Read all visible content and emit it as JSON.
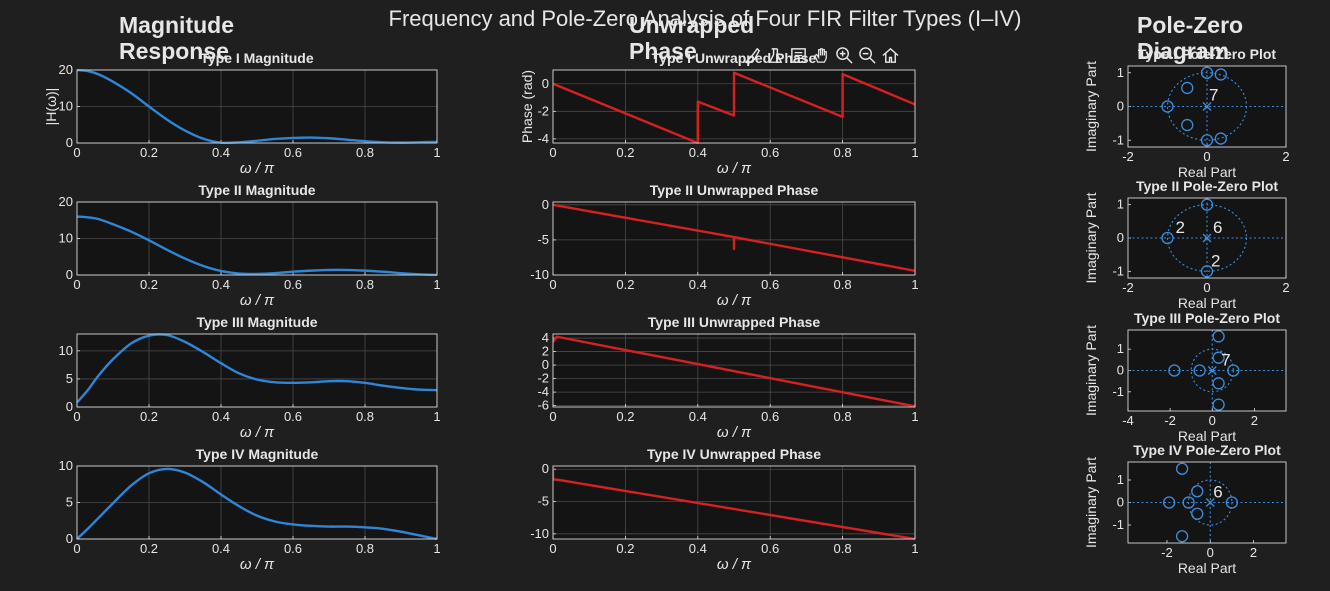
{
  "figure": {
    "title": "Frequency and Pole-Zero Analysis of Four FIR Filter Types (I–IV)",
    "column_titles": [
      {
        "line1": "Magnitude",
        "line2": "Response"
      },
      {
        "line1": "Unwrapped",
        "line2": "Phase"
      },
      {
        "line1": "Pole-Zero",
        "line2": "Diagram"
      }
    ],
    "colors": {
      "background": "#1f1f1f",
      "axes": "#141414",
      "grid": "#4a4a4a",
      "magnitude": "#2f86d8",
      "phase": "#d62022",
      "polezero": "#3a8ede"
    }
  },
  "toolbar": [
    "brush-icon",
    "data-tips-icon",
    "legend-icon",
    "pan-icon",
    "zoom-in-icon",
    "zoom-out-icon",
    "home-icon"
  ],
  "chart_data": [
    {
      "type": "line",
      "title": "Type I Magnitude",
      "xlabel": "ω / π",
      "ylabel": "|H(ω)|",
      "xlim": [
        0,
        1
      ],
      "ylim": [
        0,
        20
      ],
      "xticks": [
        0,
        0.2,
        0.4,
        0.6,
        0.8,
        1
      ],
      "yticks": [
        0,
        10,
        20
      ],
      "grid": true,
      "series": [
        {
          "x": [
            0,
            0.03,
            0.06,
            0.1,
            0.15,
            0.2,
            0.25,
            0.3,
            0.35,
            0.4,
            0.45,
            0.5,
            0.55,
            0.6,
            0.65,
            0.7,
            0.75,
            0.8,
            0.85,
            0.9,
            0.95,
            1
          ],
          "y": [
            20,
            19.7,
            18.8,
            16.8,
            13.7,
            10,
            6.4,
            3.4,
            1.2,
            0.1,
            0.2,
            0.6,
            1.1,
            1.4,
            1.5,
            1.3,
            0.9,
            0.5,
            0.2,
            0.1,
            0.2,
            0.3
          ]
        }
      ]
    },
    {
      "type": "line",
      "title": "Type I Unwrapped Phase",
      "xlabel": "ω / π",
      "ylabel": "Phase (rad)",
      "xlim": [
        0,
        1
      ],
      "ylim": [
        -4.3,
        1
      ],
      "xticks": [
        0,
        0.2,
        0.4,
        0.6,
        0.8,
        1
      ],
      "yticks": [
        0,
        -2,
        -4
      ],
      "grid": true,
      "series": [
        {
          "x": [
            0,
            0.4,
            0.4,
            0.5,
            0.5,
            0.8,
            0.8,
            1
          ],
          "y": [
            0,
            -4.3,
            -1.3,
            -2.3,
            0.8,
            -2.4,
            0.7,
            -1.5
          ]
        }
      ]
    },
    {
      "type": "scatter",
      "title": "Type I Pole-Zero Plot",
      "xlabel": "Real Part",
      "ylabel": "Imaginary Part",
      "xlim": [
        -2,
        2
      ],
      "ylim": [
        -1.2,
        1.2
      ],
      "xticks": [
        -2,
        0,
        2
      ],
      "yticks": [
        1,
        0,
        -1
      ],
      "grid": false,
      "zeros": [
        [
          -1,
          0
        ],
        [
          -0.5,
          0.55
        ],
        [
          -0.5,
          -0.55
        ],
        [
          0,
          1
        ],
        [
          0,
          -1
        ],
        [
          0.35,
          0.95
        ],
        [
          0.35,
          -0.95
        ]
      ],
      "poles": [
        [
          0,
          0
        ]
      ],
      "pole_multiplicity": 7,
      "annotations": [
        "7"
      ]
    },
    {
      "type": "line",
      "title": "Type II Magnitude",
      "xlabel": "ω / π",
      "ylabel": "",
      "xlim": [
        0,
        1
      ],
      "ylim": [
        0,
        20
      ],
      "xticks": [
        0,
        0.2,
        0.4,
        0.6,
        0.8,
        1
      ],
      "yticks": [
        0,
        10,
        20
      ],
      "grid": true,
      "series": [
        {
          "x": [
            0,
            0.03,
            0.06,
            0.1,
            0.15,
            0.2,
            0.25,
            0.3,
            0.35,
            0.4,
            0.45,
            0.5,
            0.55,
            0.6,
            0.65,
            0.7,
            0.75,
            0.8,
            0.85,
            0.9,
            0.95,
            1
          ],
          "y": [
            16,
            15.8,
            15.3,
            13.9,
            11.9,
            9.5,
            6.9,
            4.5,
            2.5,
            1.1,
            0.4,
            0.3,
            0.5,
            0.9,
            1.2,
            1.4,
            1.4,
            1.2,
            0.9,
            0.5,
            0.2,
            0
          ]
        }
      ]
    },
    {
      "type": "line",
      "title": "Type II Unwrapped Phase",
      "xlabel": "ω / π",
      "ylabel": "",
      "xlim": [
        0,
        1
      ],
      "ylim": [
        -10,
        0.4
      ],
      "xticks": [
        0,
        0.2,
        0.4,
        0.6,
        0.8,
        1
      ],
      "yticks": [
        0,
        -5,
        -10
      ],
      "grid": true,
      "series": [
        {
          "x": [
            0,
            0.5,
            0.5,
            0.5,
            1
          ],
          "y": [
            0,
            -4.6,
            -6.3,
            -4.6,
            -9.4
          ]
        }
      ]
    },
    {
      "type": "scatter",
      "title": "Type II Pole-Zero Plot",
      "xlabel": "Real Part",
      "ylabel": "Imaginary Part",
      "xlim": [
        -2,
        2
      ],
      "ylim": [
        -1.2,
        1.2
      ],
      "xticks": [
        -2,
        0,
        2
      ],
      "yticks": [
        1,
        0,
        -1
      ],
      "grid": false,
      "zeros": [
        [
          -1,
          0
        ],
        [
          0,
          1
        ],
        [
          0,
          -1
        ]
      ],
      "poles": [
        [
          0,
          0
        ]
      ],
      "pole_multiplicity": 6,
      "annotations": [
        "2",
        "6",
        "2"
      ]
    },
    {
      "type": "line",
      "title": "Type III Magnitude",
      "xlabel": "ω / π",
      "ylabel": "",
      "xlim": [
        0,
        1
      ],
      "ylim": [
        0,
        13
      ],
      "xticks": [
        0,
        0.2,
        0.4,
        0.6,
        0.8,
        1
      ],
      "yticks": [
        0,
        5,
        10
      ],
      "grid": true,
      "series": [
        {
          "x": [
            0,
            0.03,
            0.06,
            0.1,
            0.15,
            0.2,
            0.25,
            0.3,
            0.35,
            0.4,
            0.45,
            0.5,
            0.55,
            0.6,
            0.65,
            0.7,
            0.75,
            0.8,
            0.85,
            0.9,
            0.95,
            1
          ],
          "y": [
            0.8,
            3,
            5.6,
            8.5,
            11.3,
            12.7,
            12.8,
            11.6,
            9.8,
            7.8,
            6,
            4.9,
            4.4,
            4.3,
            4.4,
            4.6,
            4.6,
            4.3,
            3.8,
            3.4,
            3.1,
            3
          ]
        }
      ]
    },
    {
      "type": "line",
      "title": "Type III Unwrapped Phase",
      "xlabel": "ω / π",
      "ylabel": "",
      "xlim": [
        0,
        1
      ],
      "ylim": [
        -6.2,
        4.6
      ],
      "xticks": [
        0,
        0.2,
        0.4,
        0.6,
        0.8,
        1
      ],
      "yticks": [
        4,
        2,
        0,
        -2,
        -4,
        -6
      ],
      "grid": true,
      "series": [
        {
          "x": [
            0,
            0.01,
            0.02,
            1
          ],
          "y": [
            3.4,
            4.2,
            4.1,
            -6.1
          ]
        }
      ]
    },
    {
      "type": "scatter",
      "title": "Type III Pole-Zero Plot",
      "xlabel": "Real Part",
      "ylabel": "Imaginary Part",
      "xlim": [
        -4,
        3.5
      ],
      "ylim": [
        -1.9,
        1.9
      ],
      "xticks": [
        -4,
        -2,
        0,
        2
      ],
      "yticks": [
        1,
        0,
        -1
      ],
      "grid": false,
      "zeros": [
        [
          -1.8,
          0
        ],
        [
          -0.6,
          0
        ],
        [
          1,
          0
        ],
        [
          0.3,
          1.6
        ],
        [
          0.3,
          -1.6
        ],
        [
          0.3,
          0.6
        ],
        [
          0.3,
          -0.6
        ]
      ],
      "poles": [
        [
          0,
          0
        ]
      ],
      "pole_multiplicity": 7,
      "annotations": [
        "7"
      ]
    },
    {
      "type": "line",
      "title": "Type IV Magnitude",
      "xlabel": "ω / π",
      "ylabel": "",
      "xlim": [
        0,
        1
      ],
      "ylim": [
        0,
        10
      ],
      "xticks": [
        0,
        0.2,
        0.4,
        0.6,
        0.8,
        1
      ],
      "yticks": [
        0,
        5,
        10
      ],
      "grid": true,
      "series": [
        {
          "x": [
            0,
            0.03,
            0.06,
            0.1,
            0.15,
            0.2,
            0.25,
            0.3,
            0.35,
            0.4,
            0.45,
            0.5,
            0.55,
            0.6,
            0.65,
            0.7,
            0.75,
            0.8,
            0.85,
            0.9,
            0.95,
            1
          ],
          "y": [
            0,
            1.4,
            2.9,
            4.9,
            7.3,
            9,
            9.6,
            9.1,
            7.8,
            6.1,
            4.5,
            3.2,
            2.4,
            2,
            1.8,
            1.7,
            1.7,
            1.6,
            1.4,
            1,
            0.5,
            0
          ]
        }
      ]
    },
    {
      "type": "line",
      "title": "Type IV Unwrapped Phase",
      "xlabel": "ω / π",
      "ylabel": "",
      "xlim": [
        0,
        1
      ],
      "ylim": [
        -10.8,
        0.5
      ],
      "xticks": [
        0,
        0.2,
        0.4,
        0.6,
        0.8,
        1
      ],
      "yticks": [
        0,
        -5,
        -10
      ],
      "grid": true,
      "series": [
        {
          "x": [
            0,
            0,
            0.01,
            1
          ],
          "y": [
            0.2,
            -1.6,
            -1.6,
            -10.8
          ]
        }
      ]
    },
    {
      "type": "scatter",
      "title": "Type IV Pole-Zero Plot",
      "xlabel": "Real Part",
      "ylabel": "Imaginary Part",
      "xlim": [
        -3.8,
        3.5
      ],
      "ylim": [
        -1.8,
        1.8
      ],
      "xticks": [
        -2,
        0,
        2
      ],
      "yticks": [
        1,
        0,
        -1
      ],
      "grid": false,
      "zeros": [
        [
          -1.9,
          0
        ],
        [
          -1,
          0
        ],
        [
          1,
          0
        ],
        [
          -0.6,
          0.5
        ],
        [
          -0.6,
          -0.5
        ],
        [
          -1.3,
          1.5
        ],
        [
          -1.3,
          -1.5
        ]
      ],
      "poles": [
        [
          0,
          0
        ]
      ],
      "pole_multiplicity": 6,
      "annotations": [
        "6"
      ]
    }
  ]
}
